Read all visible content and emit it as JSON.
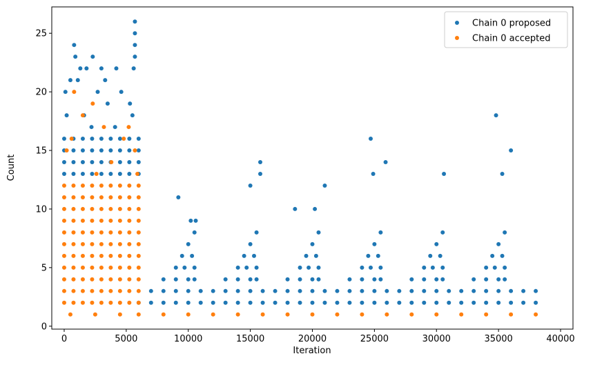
{
  "chart_data": {
    "type": "scatter",
    "xlabel": "Iteration",
    "ylabel": "Count",
    "xlim": [
      -1000,
      41000
    ],
    "xticks": [
      0,
      5000,
      10000,
      15000,
      20000,
      25000,
      30000,
      35000,
      40000
    ],
    "ylim": [
      -0.25,
      27.25
    ],
    "yticks": [
      0,
      5,
      10,
      15,
      20,
      25
    ],
    "legend": "upper right",
    "series": [
      {
        "name": "Chain 0 proposed",
        "color": "#1f77b4",
        "x": [
          0,
          750,
          1500,
          2250,
          3000,
          3750,
          4500,
          5250,
          6000,
          0,
          750,
          1500,
          2250,
          3000,
          3750,
          4500,
          5250,
          6000,
          0,
          750,
          1500,
          2250,
          3000,
          3750,
          4500,
          5250,
          6000,
          0,
          750,
          1500,
          2250,
          3000,
          3750,
          4500,
          5250,
          6000,
          800,
          900,
          1300,
          2300,
          1800,
          4200,
          5700,
          5700,
          5700,
          5700,
          5600,
          3000,
          500,
          100,
          4600,
          1100,
          2700,
          3500,
          5300,
          200,
          1600,
          4100,
          5500,
          2200,
          3300,
          6000,
          7000,
          8000,
          9000,
          10000,
          11000,
          12000,
          13000,
          14000,
          15000,
          16000,
          17000,
          18000,
          19000,
          20000,
          21000,
          22000,
          23000,
          24000,
          25000,
          26000,
          27000,
          28000,
          29000,
          30000,
          31000,
          32000,
          33000,
          34000,
          35000,
          36000,
          37000,
          38000,
          7000,
          8000,
          9000,
          10000,
          11000,
          12000,
          13000,
          14000,
          15000,
          16000,
          17000,
          18000,
          19000,
          20000,
          21000,
          22000,
          23000,
          24000,
          25000,
          26000,
          27000,
          28000,
          29000,
          30000,
          31000,
          32000,
          33000,
          34000,
          35000,
          36000,
          37000,
          38000,
          8000,
          9000,
          10000,
          10500,
          9000,
          9700,
          10500,
          9500,
          10300,
          10000,
          10500,
          13000,
          14000,
          15000,
          15500,
          14000,
          14700,
          15500,
          14500,
          15300,
          15000,
          15500,
          18000,
          19000,
          20000,
          20500,
          19000,
          19700,
          20500,
          19500,
          20300,
          20000,
          20500,
          23000,
          24000,
          25000,
          25500,
          24000,
          24700,
          25500,
          24500,
          25300,
          25000,
          25500,
          28000,
          29000,
          30000,
          30500,
          29000,
          29700,
          30500,
          29500,
          30300,
          30000,
          30500,
          33000,
          34000,
          35000,
          35500,
          34000,
          34700,
          35500,
          34500,
          35300,
          35000,
          35500,
          9200,
          10200,
          10600,
          15000,
          15800,
          15800,
          18600,
          20200,
          21000,
          24700,
          25900,
          24900,
          30600,
          34800,
          36000,
          35300
        ],
        "values": [
          13,
          13,
          13,
          13,
          13,
          13,
          13,
          13,
          13,
          14,
          14,
          14,
          14,
          14,
          14,
          14,
          14,
          14,
          15,
          15,
          15,
          15,
          15,
          15,
          15,
          15,
          15,
          16,
          16,
          16,
          16,
          16,
          16,
          16,
          16,
          16,
          24,
          23,
          22,
          23,
          22,
          22,
          26,
          25,
          24,
          23,
          22,
          22,
          21,
          20,
          20,
          21,
          20,
          19,
          19,
          18,
          18,
          17,
          18,
          17,
          21,
          2,
          2,
          2,
          2,
          2,
          2,
          2,
          2,
          2,
          2,
          2,
          2,
          2,
          2,
          2,
          2,
          2,
          2,
          2,
          2,
          2,
          2,
          2,
          2,
          2,
          2,
          2,
          2,
          2,
          2,
          2,
          2,
          2,
          3,
          3,
          3,
          3,
          3,
          3,
          3,
          3,
          3,
          3,
          3,
          3,
          3,
          3,
          3,
          3,
          3,
          3,
          3,
          3,
          3,
          3,
          3,
          3,
          3,
          3,
          3,
          3,
          3,
          3,
          3,
          3,
          4,
          4,
          4,
          4,
          5,
          5,
          5,
          6,
          6,
          7,
          8,
          4,
          4,
          4,
          4,
          5,
          5,
          5,
          6,
          6,
          7,
          8,
          4,
          4,
          4,
          4,
          5,
          5,
          5,
          6,
          6,
          7,
          8,
          4,
          4,
          4,
          4,
          5,
          5,
          5,
          6,
          6,
          7,
          8,
          4,
          4,
          4,
          4,
          5,
          5,
          5,
          6,
          6,
          7,
          8,
          4,
          4,
          4,
          4,
          5,
          5,
          5,
          6,
          6,
          7,
          8,
          11,
          9,
          9,
          12,
          14,
          13,
          10,
          10,
          12,
          16,
          14,
          13,
          13,
          18,
          15,
          13
        ]
      },
      {
        "name": "Chain 0 accepted",
        "color": "#ff7f0e",
        "x": [
          0,
          750,
          1500,
          2250,
          3000,
          3750,
          4500,
          5250,
          6000,
          0,
          750,
          1500,
          2250,
          3000,
          3750,
          4500,
          5250,
          6000,
          0,
          750,
          1500,
          2250,
          3000,
          3750,
          4500,
          5250,
          6000,
          0,
          750,
          1500,
          2250,
          3000,
          3750,
          4500,
          5250,
          6000,
          0,
          750,
          1500,
          2250,
          3000,
          3750,
          4500,
          5250,
          6000,
          0,
          750,
          1500,
          2250,
          3000,
          3750,
          4500,
          5250,
          6000,
          0,
          750,
          1500,
          2250,
          3000,
          3750,
          4500,
          5250,
          6000,
          0,
          750,
          1500,
          2250,
          3000,
          3750,
          4500,
          5250,
          6000,
          0,
          750,
          1500,
          2250,
          3000,
          3750,
          4500,
          5250,
          6000,
          0,
          750,
          1500,
          2250,
          3000,
          3750,
          4500,
          5250,
          6000,
          0,
          750,
          1500,
          2250,
          3000,
          3750,
          4500,
          5250,
          6000,
          500,
          2500,
          4500,
          6000,
          8000,
          10000,
          12000,
          14000,
          16000,
          18000,
          20000,
          22000,
          24000,
          26000,
          28000,
          30000,
          32000,
          34000,
          36000,
          38000,
          800,
          2300,
          1500,
          3200,
          5200,
          600,
          4800,
          5700,
          200,
          3800,
          2600,
          5900
        ],
        "values": [
          2,
          2,
          2,
          2,
          2,
          2,
          2,
          2,
          2,
          3,
          3,
          3,
          3,
          3,
          3,
          3,
          3,
          3,
          4,
          4,
          4,
          4,
          4,
          4,
          4,
          4,
          4,
          5,
          5,
          5,
          5,
          5,
          5,
          5,
          5,
          5,
          6,
          6,
          6,
          6,
          6,
          6,
          6,
          6,
          6,
          7,
          7,
          7,
          7,
          7,
          7,
          7,
          7,
          7,
          8,
          8,
          8,
          8,
          8,
          8,
          8,
          8,
          8,
          9,
          9,
          9,
          9,
          9,
          9,
          9,
          9,
          9,
          10,
          10,
          10,
          10,
          10,
          10,
          10,
          10,
          10,
          11,
          11,
          11,
          11,
          11,
          11,
          11,
          11,
          11,
          12,
          12,
          12,
          12,
          12,
          12,
          12,
          12,
          12,
          1,
          1,
          1,
          1,
          1,
          1,
          1,
          1,
          1,
          1,
          1,
          1,
          1,
          1,
          1,
          1,
          1,
          1,
          1,
          1,
          20,
          19,
          18,
          17,
          17,
          16,
          16,
          15,
          15,
          14,
          13,
          13
        ]
      }
    ]
  }
}
